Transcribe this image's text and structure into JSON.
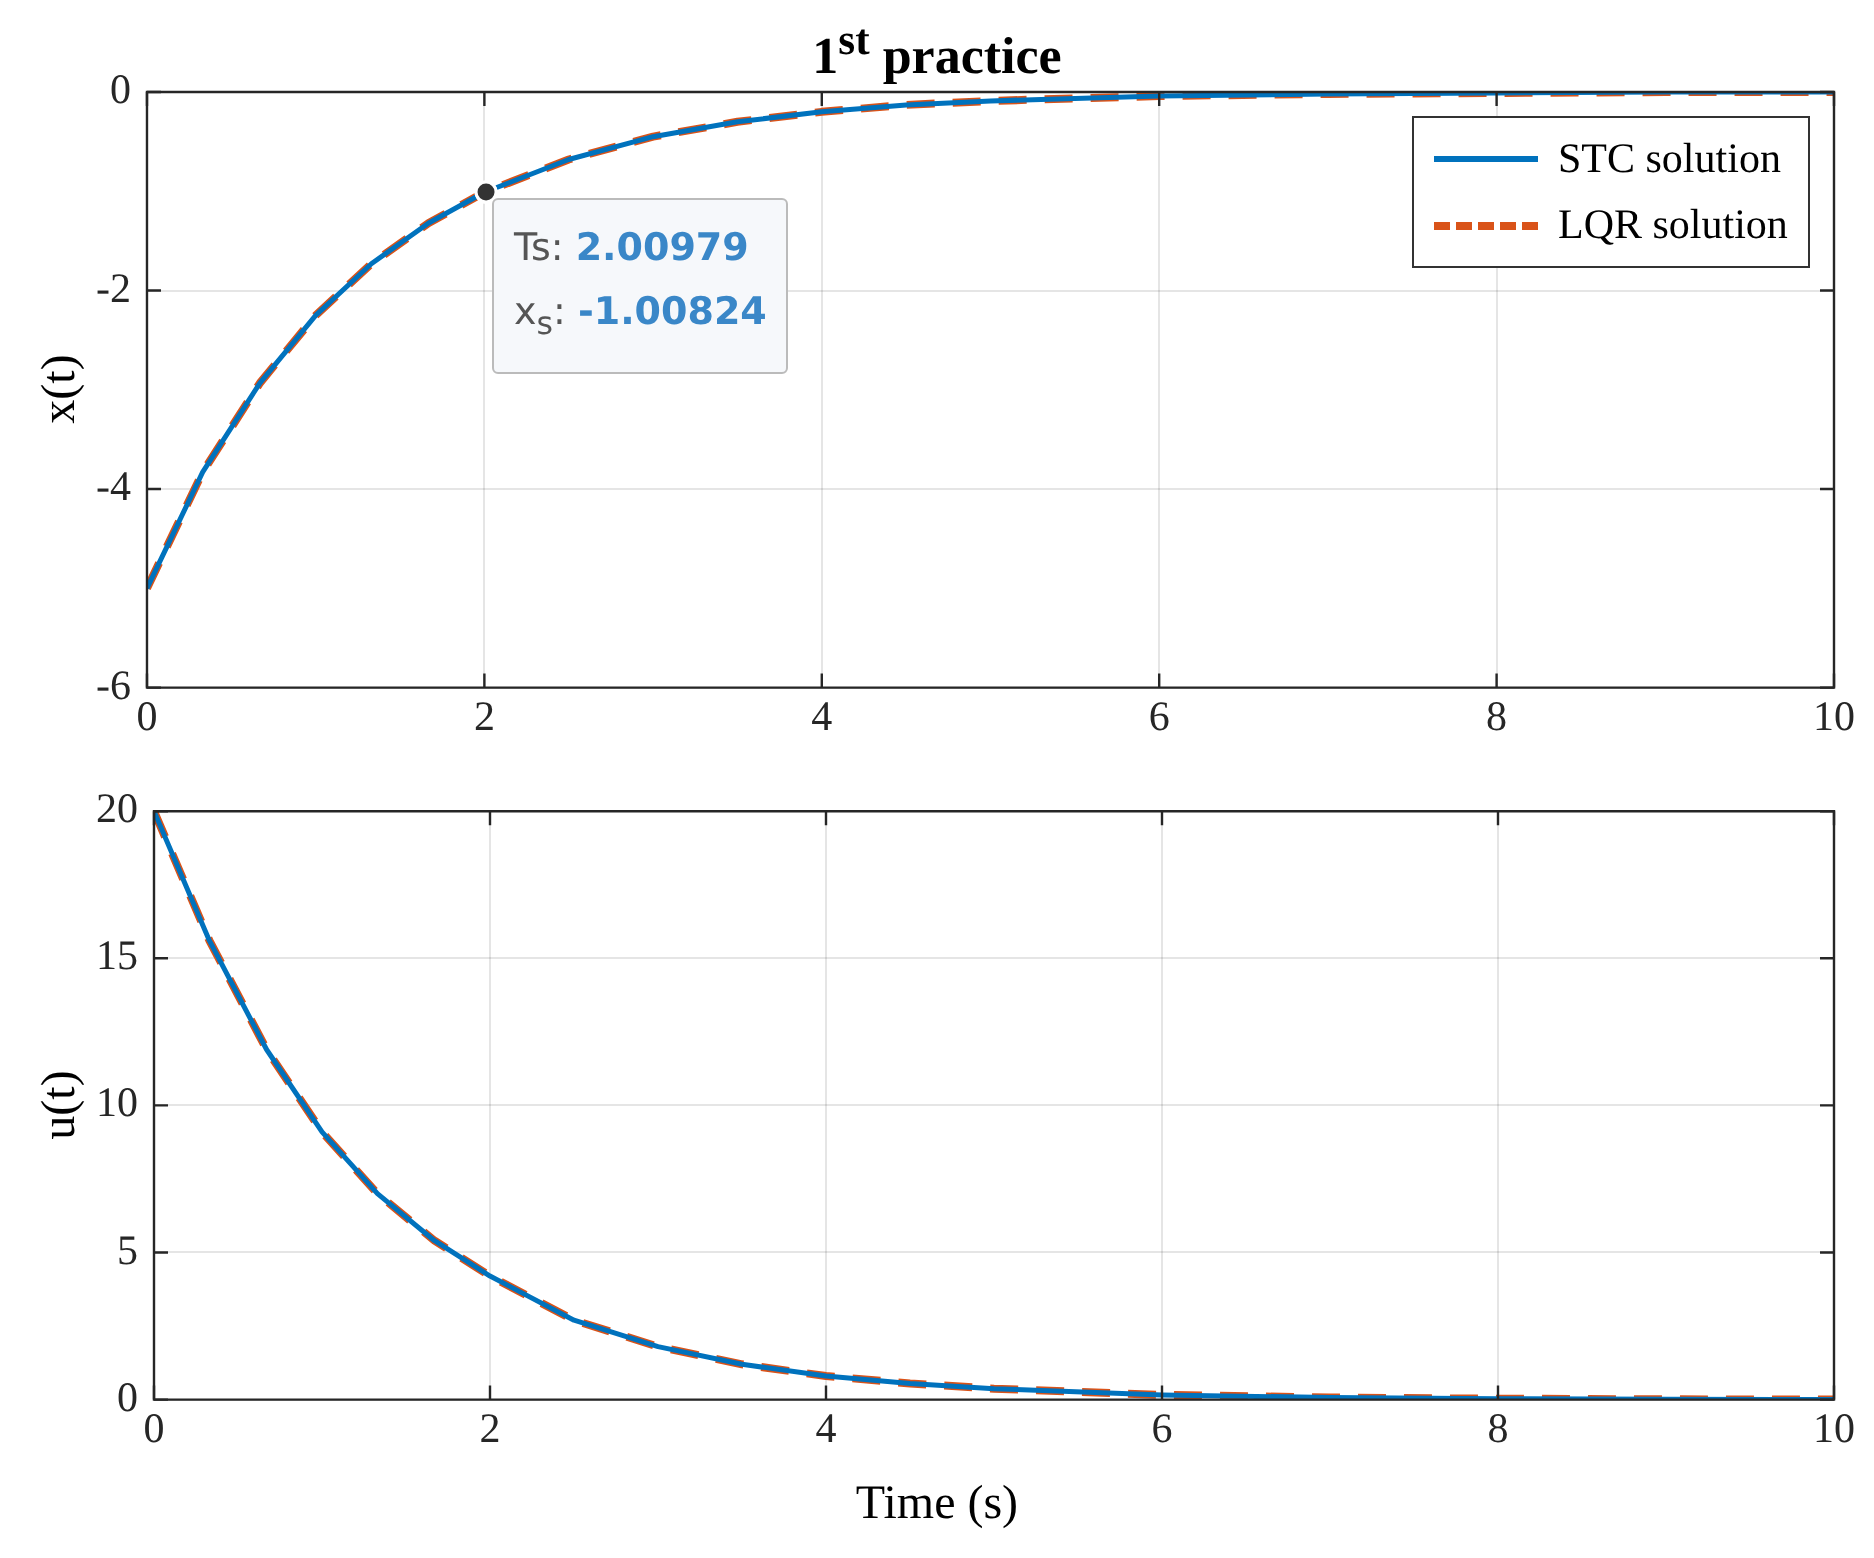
{
  "chart_data": [
    {
      "type": "line",
      "title": "1$^{st}$ practice",
      "ylabel": "x(t)",
      "x": [
        0,
        0.33,
        0.67,
        1,
        1.33,
        1.67,
        2,
        2.5,
        3,
        3.5,
        4,
        4.5,
        5,
        6,
        7,
        8,
        9,
        10
      ],
      "series": [
        {
          "name": "STC solution",
          "color": "#0072bd",
          "line_style": "solid",
          "values": [
            -5,
            -3.83,
            -2.93,
            -2.25,
            -1.73,
            -1.32,
            -1.01,
            -0.68,
            -0.45,
            -0.3,
            -0.2,
            -0.13,
            -0.09,
            -0.04,
            -0.02,
            -0.01,
            0,
            0
          ]
        },
        {
          "name": "LQR solution",
          "color": "#d95319",
          "line_style": "dashed",
          "values": [
            -5,
            -3.83,
            -2.93,
            -2.25,
            -1.73,
            -1.32,
            -1.01,
            -0.68,
            -0.45,
            -0.3,
            -0.2,
            -0.13,
            -0.09,
            -0.04,
            -0.02,
            -0.01,
            0,
            0
          ]
        }
      ],
      "xlim": [
        0,
        10
      ],
      "xticks": [
        0,
        2,
        4,
        6,
        8,
        10
      ],
      "ylim": [
        -6,
        0
      ],
      "yticks": [
        -6,
        -4,
        -2,
        0
      ],
      "grid": true,
      "legend": "top right",
      "annotations": [
        {
          "text": "Ts: 2.00979",
          "x": 2.00979,
          "y": -1.00824
        },
        {
          "text": "x$_{s}$: -1.00824",
          "x": 2.00979,
          "y": -1.00824
        }
      ]
    },
    {
      "type": "line",
      "xlabel": "Time (s)",
      "ylabel": "u(t)",
      "x": [
        0,
        0.33,
        0.67,
        1,
        1.33,
        1.67,
        2,
        2.5,
        3,
        3.5,
        4,
        4.5,
        5,
        6,
        7,
        8,
        9,
        10
      ],
      "series": [
        {
          "color": "#0072bd",
          "line_style": "solid",
          "values": [
            20,
            15.6,
            11.9,
            9.1,
            7,
            5.4,
            4.2,
            2.7,
            1.8,
            1.2,
            0.8,
            0.55,
            0.37,
            0.16,
            0.07,
            0.03,
            0.01,
            0
          ]
        },
        {
          "color": "#d95319",
          "line_style": "dashed",
          "values": [
            20,
            15.6,
            11.9,
            9.1,
            7,
            5.4,
            4.2,
            2.7,
            1.8,
            1.2,
            0.8,
            0.55,
            0.37,
            0.16,
            0.07,
            0.03,
            0.01,
            0
          ]
        }
      ],
      "xlim": [
        0,
        10
      ],
      "xticks": [
        0,
        2,
        4,
        6,
        8,
        10
      ],
      "ylim": [
        0,
        20
      ],
      "yticks": [
        0,
        5,
        10,
        15,
        20
      ],
      "grid": true
    }
  ]
}
